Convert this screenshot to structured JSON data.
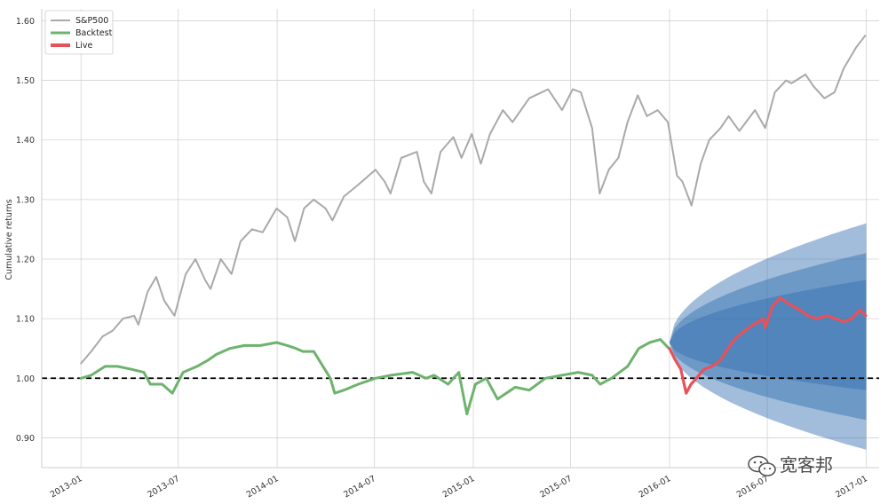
{
  "chart_data": {
    "type": "line",
    "ylabel": "Cumulative returns",
    "ylim": [
      0.85,
      1.62
    ],
    "yticks": [
      0.9,
      1.0,
      1.1,
      1.2,
      1.3,
      1.4,
      1.5,
      1.6
    ],
    "ytick_labels": [
      "0.90",
      "1.00",
      "1.10",
      "1.20",
      "1.30",
      "1.40",
      "1.50",
      "1.60"
    ],
    "xlim": [
      "2012-10-20",
      "2017-01-25"
    ],
    "xticks": [
      "2013-01-01",
      "2013-07-01",
      "2014-01-01",
      "2014-07-01",
      "2015-01-01",
      "2015-07-01",
      "2016-01-01",
      "2016-07-01",
      "2017-01-01"
    ],
    "xtick_labels": [
      "2013-01",
      "2013-07",
      "2014-01",
      "2014-07",
      "2015-01",
      "2015-07",
      "2016-01",
      "2016-07",
      "2017-01"
    ],
    "grid": true,
    "baseline": 1.0,
    "legend_position": "top-left",
    "series": [
      {
        "name": "S&P500",
        "color": "#a9a9a9",
        "x": [
          "2013-01-01",
          "2013-01-20",
          "2013-02-10",
          "2013-03-01",
          "2013-03-20",
          "2013-04-10",
          "2013-04-18",
          "2013-05-05",
          "2013-05-21",
          "2013-06-05",
          "2013-06-24",
          "2013-07-15",
          "2013-08-02",
          "2013-08-20",
          "2013-08-30",
          "2013-09-18",
          "2013-10-08",
          "2013-10-25",
          "2013-11-15",
          "2013-12-05",
          "2013-12-31",
          "2014-01-20",
          "2014-02-03",
          "2014-02-20",
          "2014-03-10",
          "2014-04-01",
          "2014-04-14",
          "2014-05-05",
          "2014-06-01",
          "2014-07-03",
          "2014-07-20",
          "2014-07-31",
          "2014-08-20",
          "2014-09-18",
          "2014-10-01",
          "2014-10-15",
          "2014-11-01",
          "2014-11-25",
          "2014-12-10",
          "2014-12-29",
          "2015-01-15",
          "2015-02-01",
          "2015-02-25",
          "2015-03-15",
          "2015-04-15",
          "2015-05-20",
          "2015-06-15",
          "2015-07-05",
          "2015-07-20",
          "2015-08-10",
          "2015-08-24",
          "2015-09-10",
          "2015-09-28",
          "2015-10-15",
          "2015-11-03",
          "2015-11-20",
          "2015-12-10",
          "2015-12-29",
          "2016-01-15",
          "2016-01-25",
          "2016-02-11",
          "2016-02-28",
          "2016-03-15",
          "2016-04-05",
          "2016-04-20",
          "2016-05-10",
          "2016-06-08",
          "2016-06-27",
          "2016-07-15",
          "2016-08-05",
          "2016-08-15",
          "2016-09-10",
          "2016-09-25",
          "2016-10-15",
          "2016-11-03",
          "2016-11-20",
          "2016-12-13",
          "2016-12-30"
        ],
        "values": [
          1.025,
          1.045,
          1.07,
          1.08,
          1.1,
          1.105,
          1.09,
          1.145,
          1.17,
          1.13,
          1.105,
          1.175,
          1.2,
          1.165,
          1.15,
          1.2,
          1.175,
          1.23,
          1.25,
          1.245,
          1.285,
          1.27,
          1.23,
          1.285,
          1.3,
          1.285,
          1.265,
          1.305,
          1.325,
          1.35,
          1.33,
          1.31,
          1.37,
          1.38,
          1.33,
          1.31,
          1.38,
          1.405,
          1.37,
          1.41,
          1.36,
          1.41,
          1.45,
          1.43,
          1.47,
          1.485,
          1.45,
          1.485,
          1.48,
          1.42,
          1.31,
          1.35,
          1.37,
          1.43,
          1.475,
          1.44,
          1.45,
          1.43,
          1.34,
          1.33,
          1.29,
          1.36,
          1.4,
          1.42,
          1.44,
          1.415,
          1.45,
          1.42,
          1.48,
          1.5,
          1.495,
          1.51,
          1.49,
          1.47,
          1.48,
          1.52,
          1.555,
          1.575
        ]
      },
      {
        "name": "Backtest",
        "color": "#6db36d",
        "x": [
          "2013-01-01",
          "2013-01-20",
          "2013-02-15",
          "2013-03-10",
          "2013-04-05",
          "2013-04-28",
          "2013-05-10",
          "2013-06-01",
          "2013-06-20",
          "2013-07-10",
          "2013-08-05",
          "2013-08-25",
          "2013-09-10",
          "2013-10-05",
          "2013-11-01",
          "2013-12-01",
          "2013-12-31",
          "2014-01-20",
          "2014-02-05",
          "2014-02-18",
          "2014-03-10",
          "2014-04-10",
          "2014-04-18",
          "2014-05-05",
          "2014-06-01",
          "2014-07-03",
          "2014-08-01",
          "2014-09-10",
          "2014-10-05",
          "2014-10-20",
          "2014-11-15",
          "2014-12-05",
          "2014-12-20",
          "2015-01-05",
          "2015-01-25",
          "2015-02-15",
          "2015-03-20",
          "2015-04-15",
          "2015-05-15",
          "2015-06-15",
          "2015-07-15",
          "2015-08-10",
          "2015-08-25",
          "2015-09-15",
          "2015-10-15",
          "2015-11-05",
          "2015-11-25",
          "2015-12-15",
          "2015-12-31"
        ],
        "values": [
          1.0,
          1.005,
          1.02,
          1.02,
          1.015,
          1.01,
          0.99,
          0.99,
          0.975,
          1.01,
          1.02,
          1.03,
          1.04,
          1.05,
          1.055,
          1.055,
          1.06,
          1.055,
          1.05,
          1.045,
          1.045,
          1.0,
          0.975,
          0.98,
          0.99,
          1.0,
          1.005,
          1.01,
          1.0,
          1.005,
          0.99,
          1.01,
          0.94,
          0.99,
          1.0,
          0.965,
          0.985,
          0.98,
          1.0,
          1.005,
          1.01,
          1.005,
          0.99,
          1.0,
          1.02,
          1.05,
          1.06,
          1.065,
          1.05
        ]
      },
      {
        "name": "Live",
        "color": "#e8515a",
        "x": [
          "2016-01-01",
          "2016-01-12",
          "2016-01-22",
          "2016-02-01",
          "2016-02-10",
          "2016-02-20",
          "2016-03-05",
          "2016-03-20",
          "2016-04-05",
          "2016-04-15",
          "2016-05-01",
          "2016-05-20",
          "2016-06-05",
          "2016-06-23",
          "2016-06-27",
          "2016-07-10",
          "2016-07-25",
          "2016-08-10",
          "2016-08-30",
          "2016-09-15",
          "2016-10-01",
          "2016-10-20",
          "2016-11-05",
          "2016-11-20",
          "2016-12-05",
          "2016-12-20",
          "2016-12-31"
        ],
        "values": [
          1.05,
          1.03,
          1.015,
          0.975,
          0.99,
          1.0,
          1.015,
          1.02,
          1.03,
          1.045,
          1.065,
          1.08,
          1.09,
          1.1,
          1.085,
          1.12,
          1.135,
          1.125,
          1.115,
          1.105,
          1.1,
          1.105,
          1.1,
          1.095,
          1.1,
          1.115,
          1.105
        ]
      }
    ],
    "cone": {
      "color": "#2f6db0",
      "start": "2016-01-01",
      "end": "2017-01-01",
      "start_value": 1.06,
      "bands": [
        {
          "upper_end": 1.26,
          "lower_end": 0.88
        },
        {
          "upper_end": 1.21,
          "lower_end": 0.93
        },
        {
          "upper_end": 1.165,
          "lower_end": 0.98
        }
      ]
    }
  },
  "legend": {
    "items": [
      {
        "label": "S&P500",
        "color": "#a9a9a9"
      },
      {
        "label": "Backtest",
        "color": "#6db36d"
      },
      {
        "label": "Live",
        "color": "#e8515a"
      }
    ]
  },
  "watermark": {
    "text": "宽客邦",
    "icon": "wechat-icon"
  }
}
